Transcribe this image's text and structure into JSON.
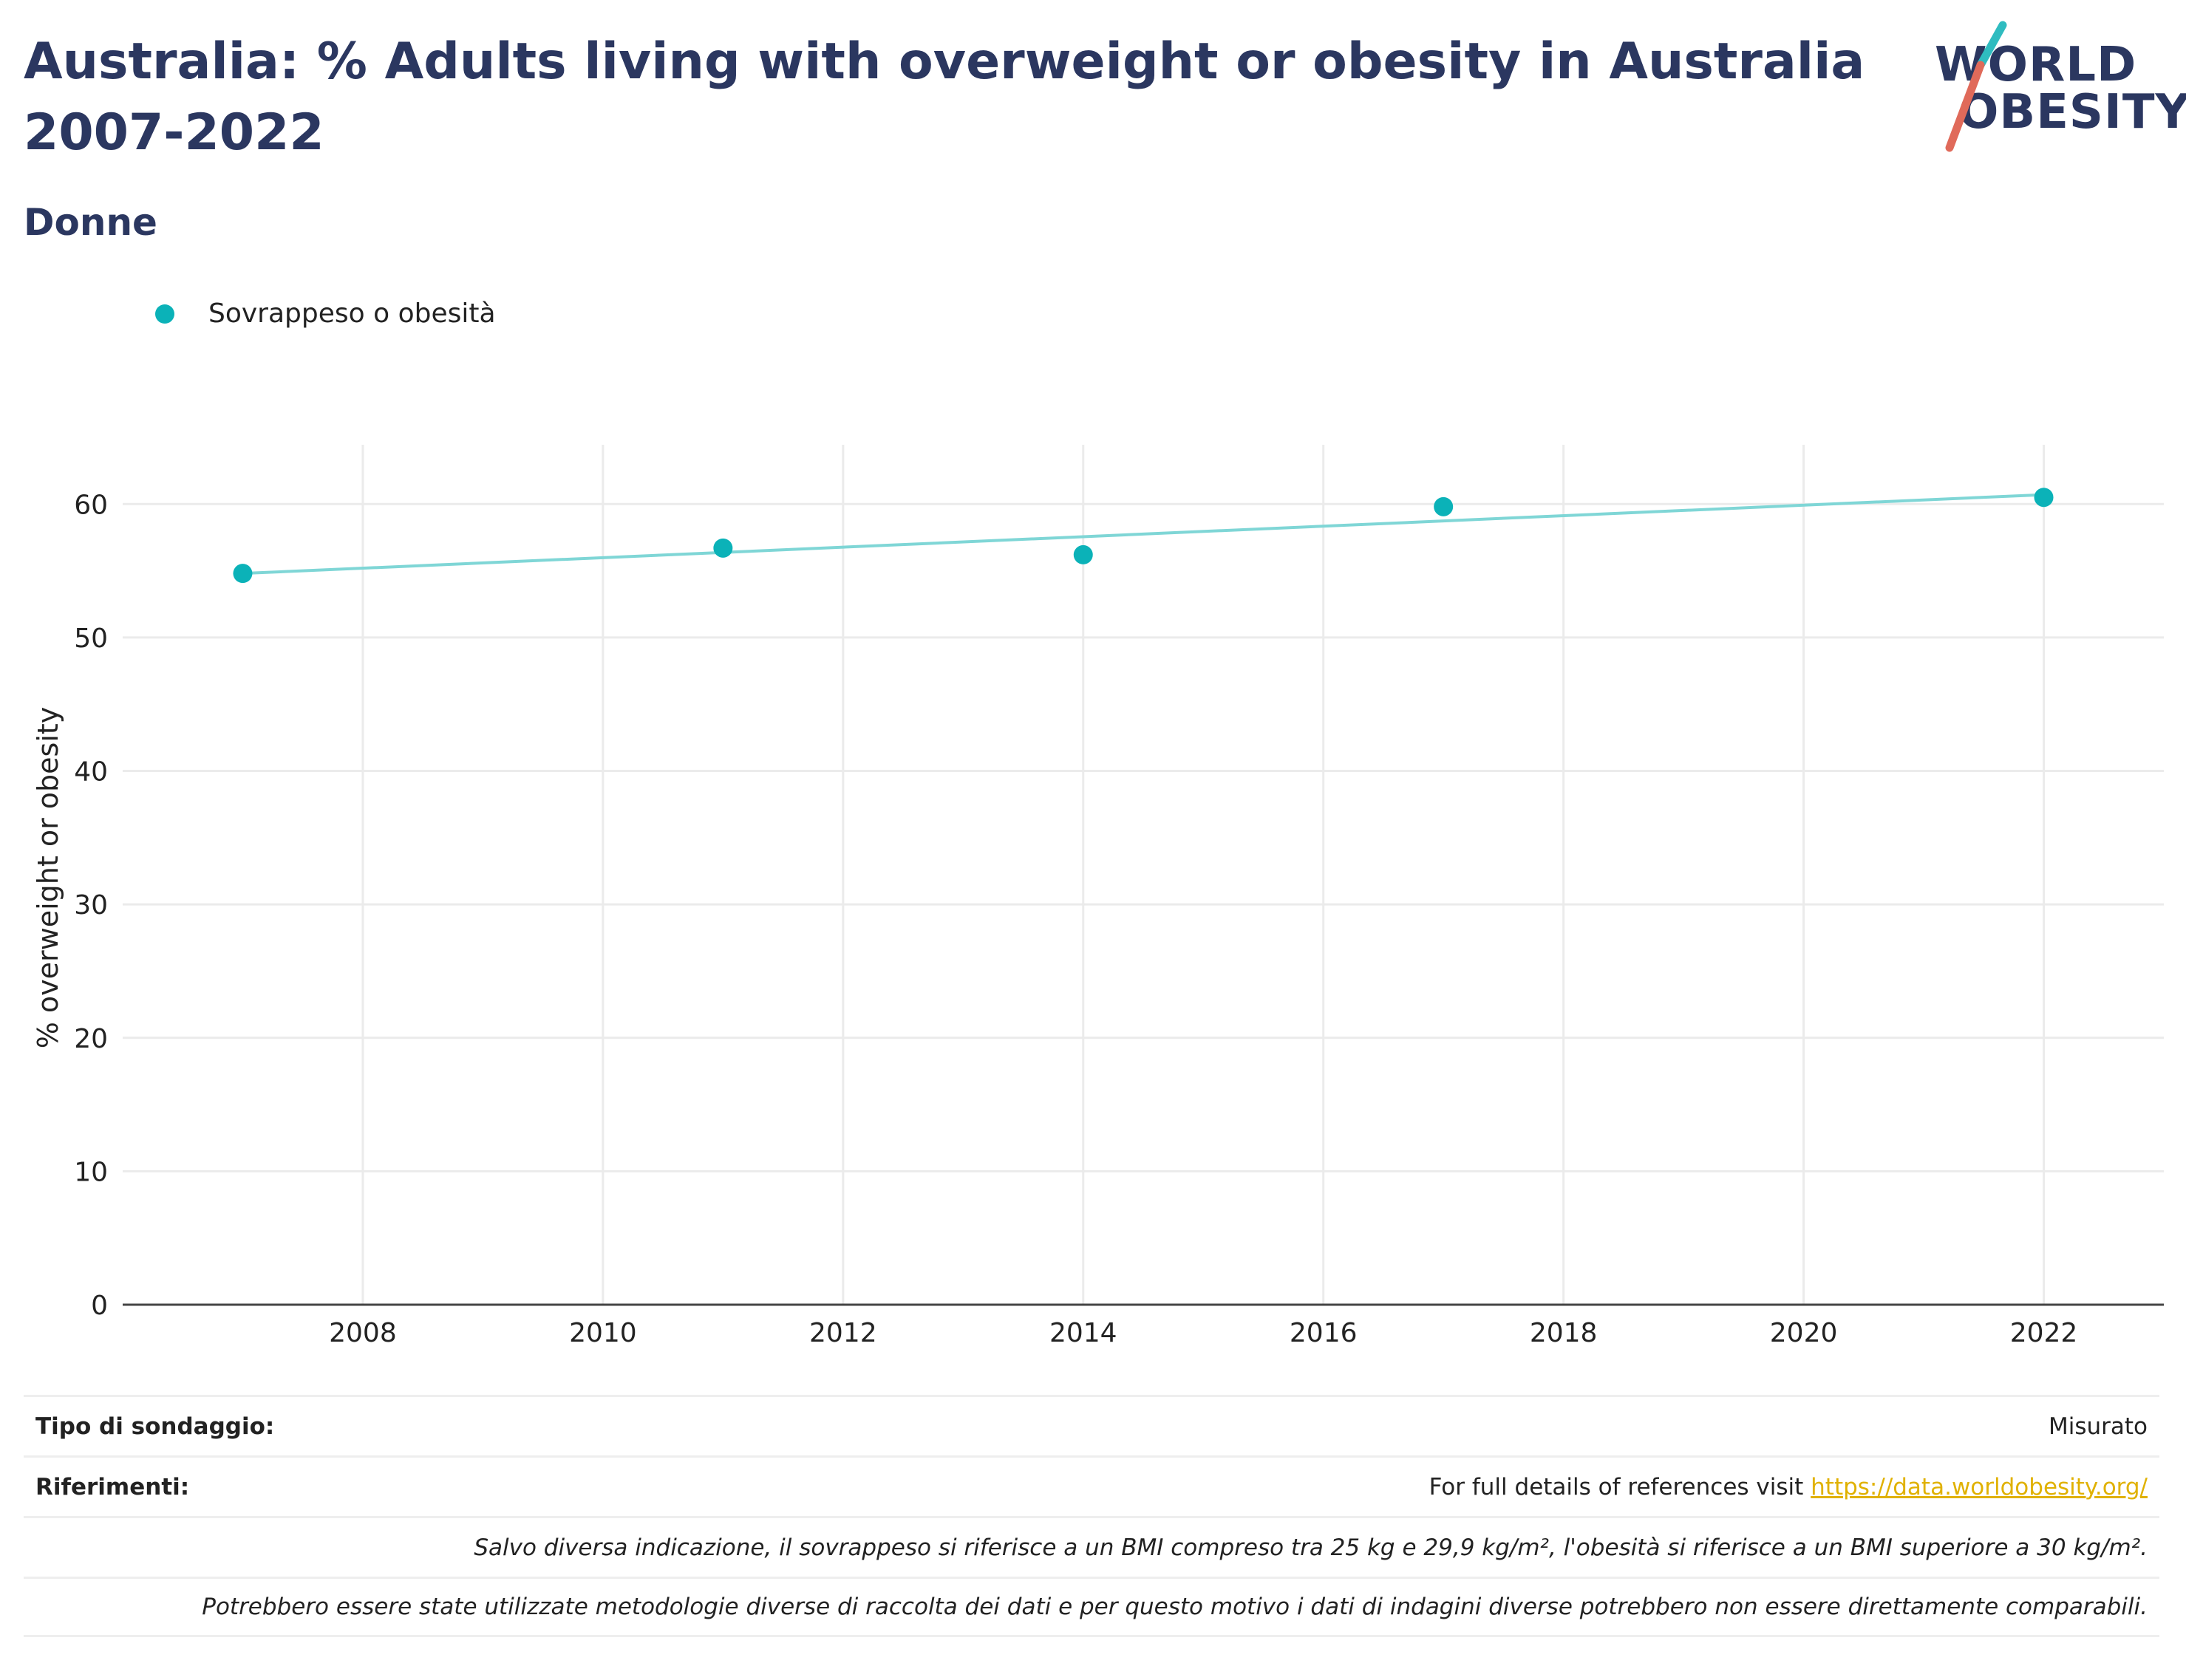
{
  "header": {
    "title": "Australia: % Adults living with overweight or obesity in Australia 2007-2022",
    "subtitle": "Donne"
  },
  "logo": {
    "line1": "WORLD",
    "line2": "OBESITY",
    "colors": {
      "text": "#2b3760",
      "slash_teal": "#2fbcc0",
      "slash_red": "#e06a5a"
    }
  },
  "legend": {
    "label": "Sovrappeso o obesità"
  },
  "chart_data": {
    "type": "scatter",
    "title": "Australia: % Adults living with overweight or obesity in Australia 2007-2022",
    "subtitle": "Donne",
    "xlabel": "",
    "ylabel": "% overweight or obesity",
    "xlim": [
      2006,
      2023
    ],
    "ylim": [
      0,
      64
    ],
    "x_ticks": [
      2008,
      2010,
      2012,
      2014,
      2016,
      2018,
      2020,
      2022
    ],
    "y_ticks": [
      0,
      10,
      20,
      30,
      40,
      50,
      60
    ],
    "grid": true,
    "legend_position": "top-left",
    "series": [
      {
        "name": "Sovrappeso o obesità",
        "color": "#0bb2b8",
        "points": [
          {
            "x": 2007,
            "y": 54.8
          },
          {
            "x": 2011,
            "y": 56.7
          },
          {
            "x": 2014,
            "y": 56.2
          },
          {
            "x": 2017,
            "y": 59.8
          },
          {
            "x": 2022,
            "y": 60.5
          }
        ]
      }
    ],
    "trendline": {
      "color": "#7fd6d6",
      "from": {
        "x": 2007,
        "y": 54.8
      },
      "to": {
        "x": 2022,
        "y": 60.7
      }
    }
  },
  "info_table": {
    "survey_type_label": "Tipo di sondaggio:",
    "survey_type_value": "Misurato",
    "references_label": "Riferimenti:",
    "references_text": "For full details of references visit ",
    "references_link": "https://data.worldobesity.org/",
    "note_bmi": "Salvo diversa indicazione, il sovrappeso si riferisce a un BMI compreso tra 25 kg e 29,9 kg/m², l'obesità si riferisce a un BMI superiore a 30 kg/m².",
    "note_methods": "Potrebbero essere state utilizzate metodologie diverse di raccolta dei dati e per questo motivo i dati di indagini diverse potrebbero non essere direttamente comparabili."
  }
}
